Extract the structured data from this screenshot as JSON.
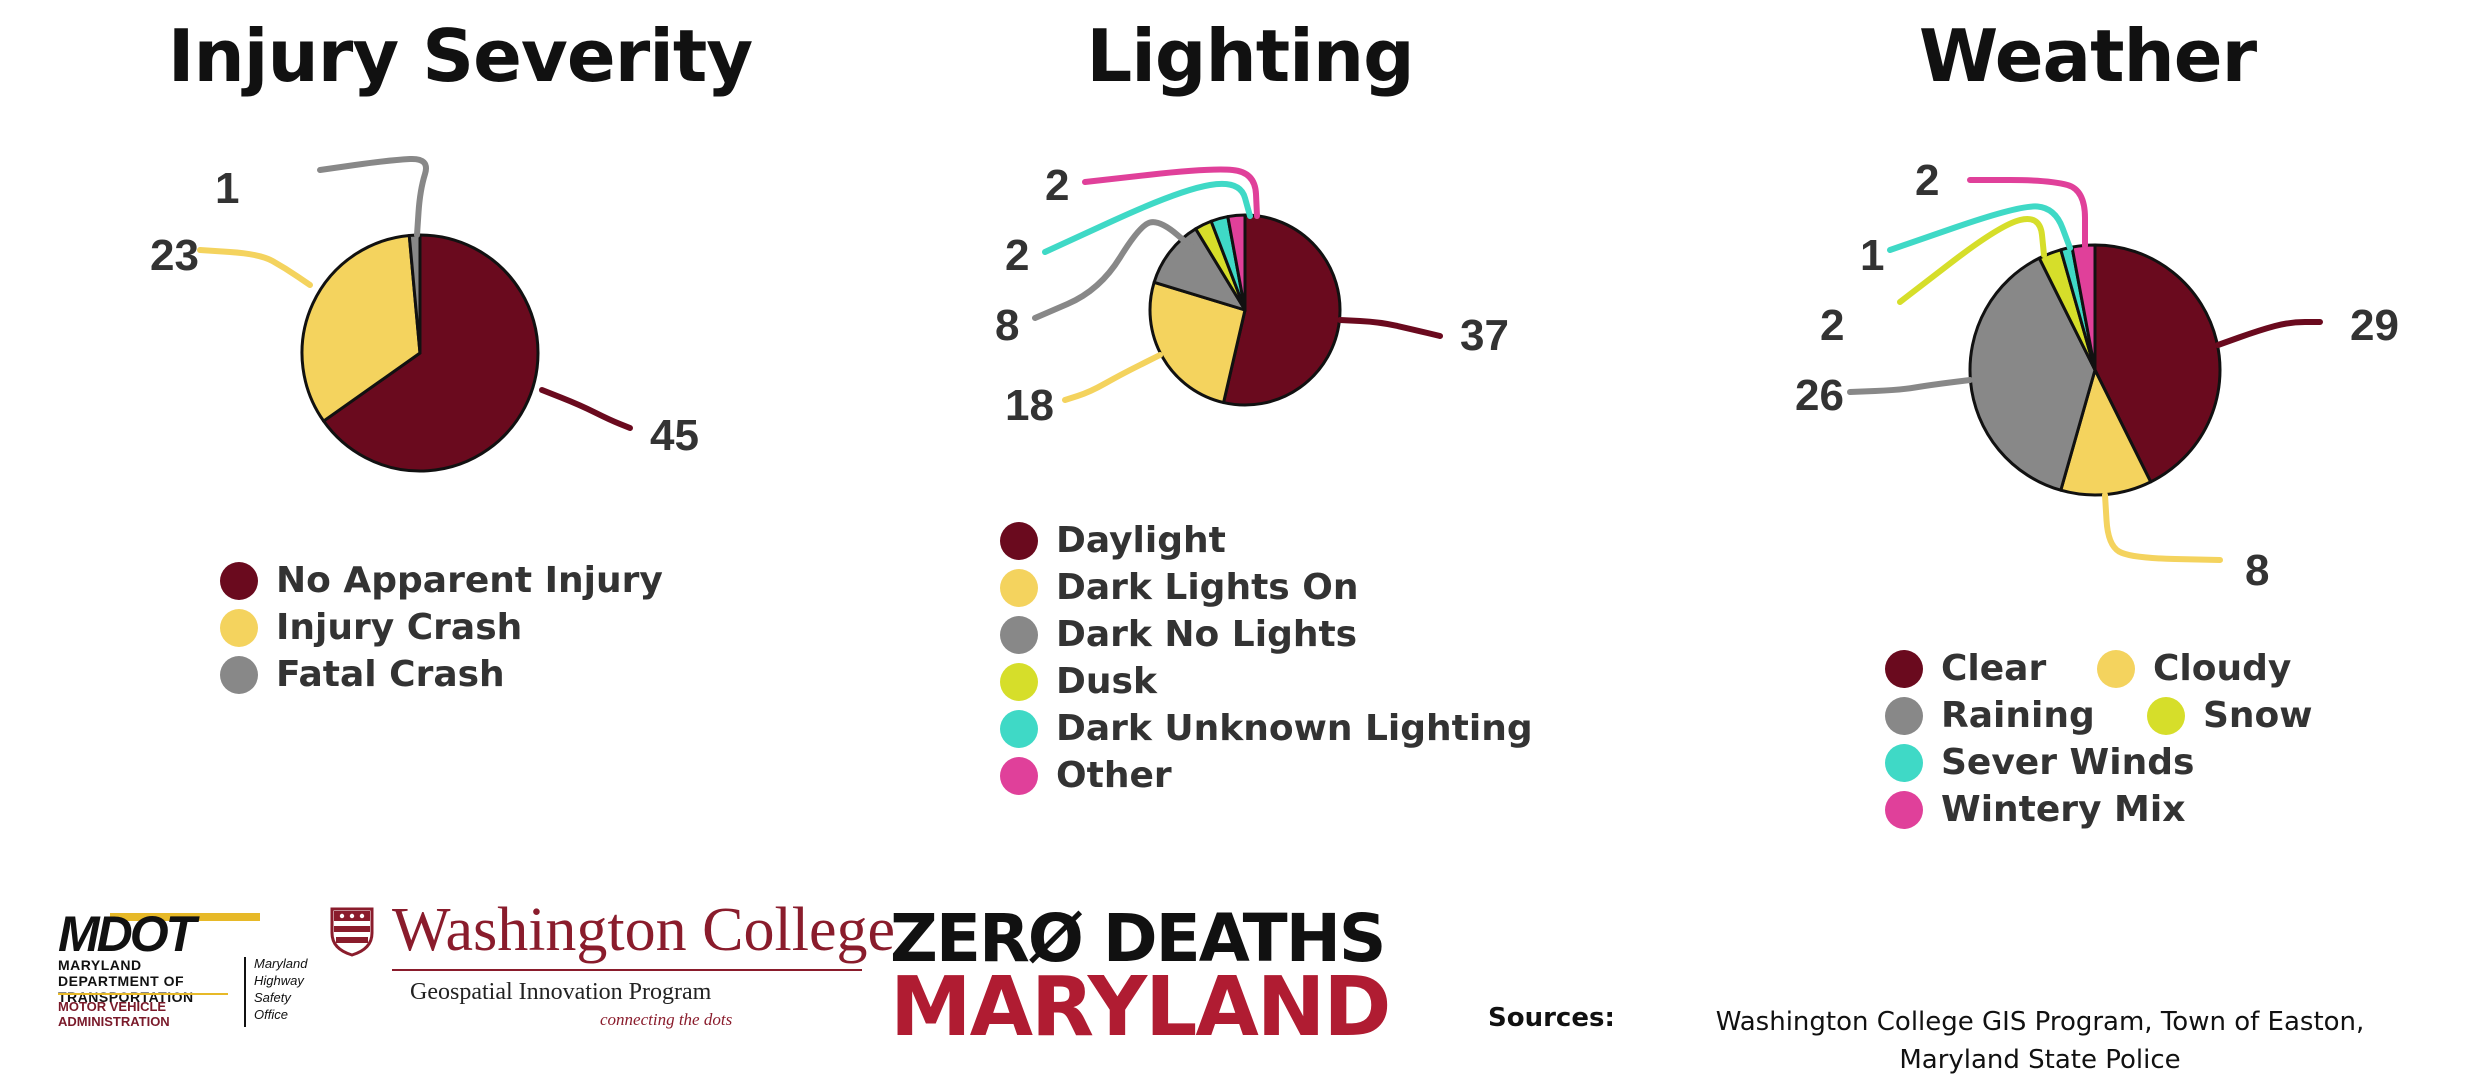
{
  "chart_data": [
    {
      "type": "pie",
      "title": "Injury Severity",
      "slices": [
        {
          "label": "No Apparent Injury",
          "value": 45,
          "color": "#6a0a1e"
        },
        {
          "label": "Injury Crash",
          "value": 23,
          "color": "#f4d35e"
        },
        {
          "label": "Fatal Crash",
          "value": 1,
          "color": "#888888"
        }
      ],
      "data_labels": [
        "45",
        "23",
        "1"
      ]
    },
    {
      "type": "pie",
      "title": "Lighting",
      "slices": [
        {
          "label": "Daylight",
          "value": 37,
          "color": "#6a0a1e"
        },
        {
          "label": "Dark Lights On",
          "value": 18,
          "color": "#f4d35e"
        },
        {
          "label": "Dark No Lights",
          "value": 8,
          "color": "#888888"
        },
        {
          "label": "Dusk",
          "value": 2,
          "color": "#d6de2a"
        },
        {
          "label": "Dark Unknown Lighting",
          "value": 2,
          "color": "#3fd9c6"
        },
        {
          "label": "Other",
          "value": 2,
          "color": "#e0409a"
        }
      ],
      "data_labels": [
        "37",
        "18",
        "8",
        "2",
        "2",
        "2"
      ]
    },
    {
      "type": "pie",
      "title": "Weather",
      "slices": [
        {
          "label": "Clear",
          "value": 29,
          "color": "#6a0a1e"
        },
        {
          "label": "Cloudy",
          "value": 8,
          "color": "#f4d35e"
        },
        {
          "label": "Raining",
          "value": 26,
          "color": "#888888"
        },
        {
          "label": "Snow",
          "value": 2,
          "color": "#d6de2a"
        },
        {
          "label": "Sever Winds",
          "value": 1,
          "color": "#3fd9c6"
        },
        {
          "label": "Wintery Mix",
          "value": 2,
          "color": "#e0409a"
        }
      ],
      "data_labels": [
        "29",
        "8",
        "26",
        "2",
        "1",
        "2"
      ]
    }
  ],
  "footer": {
    "mdot": {
      "wordmark": "MDOT",
      "department": "MARYLAND DEPARTMENT OF TRANSPORTATION",
      "administration": "MOTOR VEHICLE ADMINISTRATION",
      "office": "Maryland Highway Safety Office"
    },
    "washington_college": {
      "name": "Washington College",
      "program": "Geospatial Innovation Program",
      "tagline": "connecting the dots"
    },
    "zero_deaths": {
      "line1": "ZERØ DEATHS",
      "line2": "MARYLAND"
    },
    "sources_label": "Sources:",
    "sources_text": "Washington College GIS Program, Town of Easton, Maryland State Police"
  }
}
